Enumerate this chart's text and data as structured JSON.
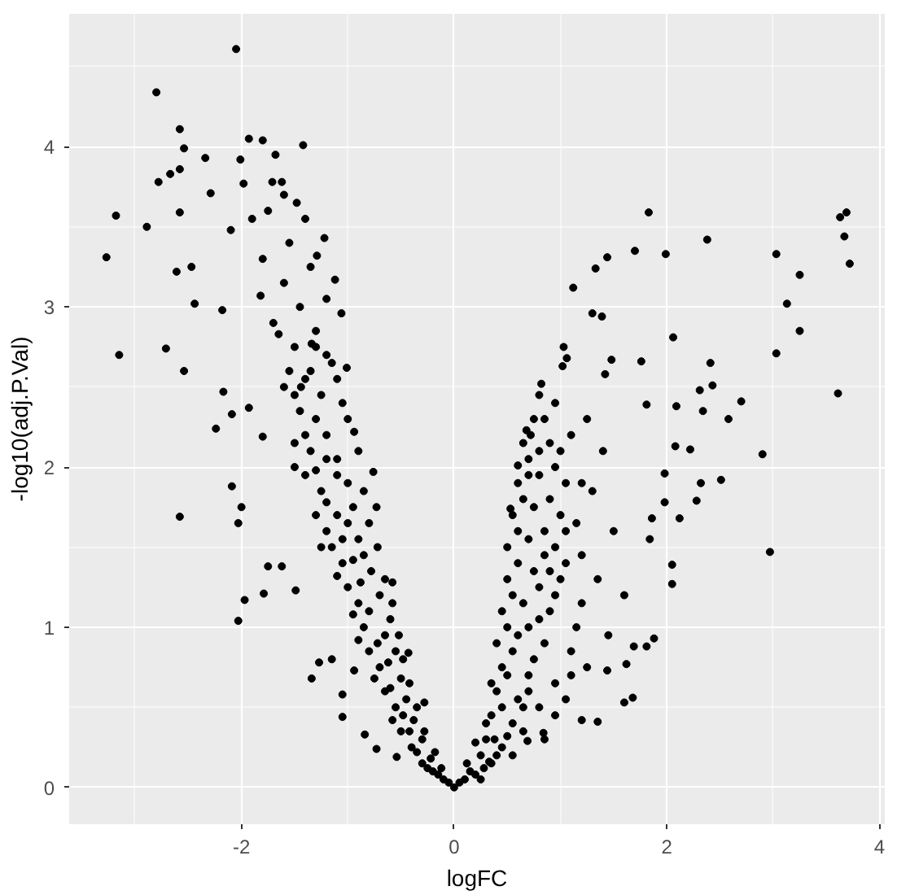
{
  "chart_data": {
    "type": "scatter",
    "xlabel": "logFC",
    "ylabel": "-log10(adj.P.Val)",
    "color": "#000000",
    "marker": "circle",
    "grid": true,
    "xlim": [
      -3.62,
      4.05
    ],
    "ylim": [
      -0.23,
      4.83
    ],
    "xticks": [
      -2,
      0,
      2,
      4
    ],
    "yticks": [
      0,
      1,
      2,
      3,
      4
    ],
    "x": [
      -2.05,
      -2.8,
      -2.58,
      -2.54,
      -1.93,
      -1.8,
      -1.42,
      -2.78,
      -2.67,
      -2.58,
      -3.18,
      -3.27,
      -3.15,
      -2.89,
      -2.58,
      -2.71,
      -2.54,
      -2.61,
      -2.44,
      -2.47,
      -2.34,
      -2.18,
      -2.24,
      -2.09,
      -2.17,
      -2.01,
      -1.68,
      -2.29,
      -1.98,
      -1.71,
      -1.62,
      -1.48,
      -1.22,
      -1.29,
      -1.12,
      -1.06,
      -1.01,
      -0.94,
      -1.93,
      -1.8,
      -2.1,
      -1.82,
      -1.65,
      -1.44,
      -1.34,
      -2.58,
      -2.03,
      -1.97,
      -1.79,
      -2.09,
      -2.03,
      -2.0,
      -1.75,
      -1.62,
      -1.49,
      -1.34,
      -1.05,
      -1.05,
      -1.27,
      -1.15,
      -0.84,
      -0.73,
      -0.54,
      -0.94,
      -0.28,
      -0.43,
      -0.58,
      -0.73,
      -0.76,
      -0.1,
      -0.05,
      -0.2,
      -0.15,
      -0.3,
      -0.22,
      -0.4,
      -0.3,
      -0.5,
      -0.38,
      -0.55,
      -0.45,
      -0.65,
      -0.5,
      -0.7,
      -0.55,
      -0.8,
      -0.65,
      -0.85,
      -0.6,
      -0.9,
      -0.7,
      -1.0,
      -0.78,
      -1.05,
      -0.85,
      -1.15,
      -0.9,
      -1.2,
      -1.0,
      -1.3,
      -0.95,
      -1.25,
      -1.0,
      -1.4,
      -1.1,
      -1.35,
      -1.5,
      -1.2,
      -1.0,
      -1.45,
      -1.25,
      -1.6,
      -1.1,
      -1.35,
      -1.2,
      -1.5,
      -1.3,
      -1.7,
      -1.45,
      -1.2,
      -1.6,
      -1.35,
      -1.8,
      -1.55,
      -1.4,
      -1.75,
      -1.6,
      -1.9,
      -0.12,
      -0.18,
      -0.25,
      -0.28,
      -0.35,
      -0.42,
      -0.35,
      -0.48,
      -0.58,
      -0.42,
      -0.6,
      -0.48,
      -0.62,
      -0.75,
      -0.52,
      -0.72,
      -0.9,
      -0.58,
      -0.8,
      -0.95,
      -0.65,
      -0.88,
      -1.1,
      -0.72,
      -0.95,
      -1.05,
      -1.25,
      -0.8,
      -1.1,
      -1.2,
      -0.85,
      -1.1,
      -1.3,
      -1.5,
      -0.9,
      -1.2,
      -1.4,
      -1.05,
      -1.3,
      -1.5,
      -1.15,
      -1.4,
      -1.3,
      -1.55,
      1.83,
      2.38,
      1.44,
      1.7,
      1.99,
      1.33,
      1.12,
      1.3,
      1.39,
      3.03,
      3.25,
      3.13,
      3.25,
      3.03,
      3.63,
      3.69,
      3.67,
      3.72,
      3.61,
      2.06,
      2.41,
      2.43,
      2.7,
      2.58,
      2.34,
      2.31,
      2.9,
      2.51,
      2.32,
      2.28,
      2.12,
      2.97,
      2.05,
      2.05,
      1.48,
      1.76,
      1.03,
      1.06,
      1.02,
      1.42,
      1.81,
      2.09,
      2.22,
      2.08,
      0.82,
      0.68,
      0.6,
      0.53,
      1.98,
      1.98,
      1.86,
      1.84,
      1.88,
      1.81,
      1.69,
      1.68,
      1.6,
      1.35,
      1.2,
      0.84,
      0.69,
      1.44,
      1.62,
      0.33,
      0.0,
      0.05,
      0.1,
      0.15,
      0.2,
      0.25,
      0.35,
      0.3,
      0.45,
      0.35,
      0.55,
      0.65,
      0.4,
      0.6,
      0.8,
      0.45,
      0.7,
      0.95,
      0.4,
      0.6,
      0.85,
      1.1,
      0.45,
      0.65,
      0.9,
      1.15,
      0.5,
      0.75,
      1.0,
      0.5,
      0.7,
      0.95,
      1.2,
      0.55,
      0.75,
      1.0,
      0.6,
      0.8,
      1.05,
      0.7,
      0.9,
      0.75,
      1.1,
      0.95,
      0.8,
      1.25,
      1.4,
      1.3,
      1.5,
      1.35,
      1.6,
      1.45,
      1.25,
      1.05,
      0.85,
      0.12,
      0.2,
      0.28,
      0.3,
      0.38,
      0.45,
      0.5,
      0.35,
      0.5,
      0.65,
      0.55,
      0.75,
      0.5,
      0.7,
      0.8,
      0.55,
      0.8,
      0.95,
      0.6,
      0.85,
      1.05,
      0.6,
      0.85,
      1.05,
      0.65,
      0.9,
      0.7,
      0.95,
      0.8,
      0.65,
      0.85,
      0.72,
      1.0,
      0.9,
      0.7,
      0.4,
      0.25,
      0.55,
      0.95,
      1.1,
      1.2,
      1.15,
      1.2
    ],
    "values": [
      4.61,
      4.34,
      4.11,
      3.99,
      4.05,
      4.04,
      4.01,
      3.78,
      3.83,
      3.86,
      3.57,
      3.31,
      2.7,
      3.5,
      3.59,
      2.74,
      2.6,
      3.22,
      3.02,
      3.25,
      3.93,
      2.98,
      2.24,
      2.33,
      2.47,
      3.92,
      3.95,
      3.71,
      3.77,
      3.78,
      3.78,
      3.65,
      3.43,
      3.32,
      3.17,
      2.96,
      2.62,
      2.22,
      2.37,
      2.19,
      3.48,
      3.07,
      2.83,
      2.5,
      2.77,
      1.69,
      1.04,
      1.17,
      1.21,
      1.88,
      1.65,
      1.75,
      1.38,
      1.38,
      1.23,
      0.68,
      0.44,
      0.58,
      0.78,
      0.8,
      0.33,
      0.24,
      0.19,
      0.73,
      0.53,
      0.84,
      1.28,
      1.75,
      1.97,
      0.05,
      0.03,
      0.1,
      0.08,
      0.15,
      0.18,
      0.25,
      0.3,
      0.35,
      0.42,
      0.5,
      0.55,
      0.6,
      0.68,
      0.75,
      0.85,
      0.85,
      0.95,
      1.0,
      1.05,
      1.15,
      1.2,
      1.25,
      1.35,
      1.4,
      1.45,
      1.5,
      1.55,
      1.6,
      1.65,
      1.7,
      1.75,
      1.85,
      1.9,
      1.95,
      2.05,
      2.1,
      2.15,
      2.2,
      2.3,
      2.35,
      2.45,
      2.5,
      2.55,
      2.6,
      2.7,
      2.75,
      2.85,
      2.9,
      3.0,
      3.05,
      3.15,
      3.25,
      3.3,
      3.4,
      3.55,
      3.6,
      3.7,
      3.55,
      0.12,
      0.22,
      0.12,
      0.35,
      0.22,
      0.35,
      0.5,
      0.45,
      0.42,
      0.65,
      0.62,
      0.8,
      0.78,
      0.68,
      0.95,
      0.9,
      0.92,
      1.15,
      1.1,
      1.08,
      1.3,
      1.28,
      1.32,
      1.5,
      1.42,
      1.55,
      1.5,
      1.65,
      1.7,
      1.78,
      1.85,
      1.95,
      1.98,
      2.0,
      2.1,
      2.05,
      2.2,
      2.4,
      2.3,
      2.45,
      2.65,
      2.55,
      2.75,
      2.6,
      3.59,
      3.42,
      3.31,
      3.35,
      3.33,
      3.24,
      3.12,
      2.96,
      2.94,
      3.33,
      3.2,
      3.02,
      2.85,
      2.71,
      3.56,
      3.59,
      3.44,
      3.27,
      2.46,
      2.81,
      2.65,
      2.51,
      2.41,
      2.3,
      2.35,
      2.48,
      2.08,
      1.92,
      1.9,
      1.79,
      1.68,
      1.47,
      1.39,
      1.27,
      2.67,
      2.66,
      2.75,
      2.68,
      2.63,
      2.58,
      2.39,
      2.38,
      2.11,
      2.13,
      2.52,
      2.23,
      2.01,
      1.74,
      1.96,
      1.78,
      1.68,
      1.55,
      0.93,
      0.88,
      0.88,
      0.56,
      0.53,
      0.41,
      0.42,
      0.34,
      0.29,
      0.73,
      0.77,
      0.16,
      0.0,
      0.03,
      0.05,
      0.1,
      0.08,
      0.2,
      0.15,
      0.3,
      0.25,
      0.45,
      0.4,
      0.35,
      0.6,
      0.55,
      0.5,
      0.75,
      0.7,
      0.65,
      0.9,
      0.95,
      0.9,
      0.85,
      1.1,
      1.15,
      1.1,
      1.0,
      1.3,
      1.35,
      1.3,
      1.5,
      1.55,
      1.5,
      1.45,
      1.7,
      1.75,
      1.7,
      1.9,
      1.95,
      1.9,
      2.05,
      2.15,
      2.3,
      2.2,
      2.4,
      2.45,
      2.3,
      2.1,
      1.85,
      1.6,
      1.3,
      1.2,
      0.95,
      0.75,
      0.55,
      0.3,
      0.15,
      0.28,
      0.12,
      0.4,
      0.3,
      0.5,
      0.32,
      0.65,
      0.7,
      0.5,
      0.85,
      0.8,
      1.0,
      1.0,
      1.05,
      1.2,
      1.25,
      1.2,
      1.4,
      1.45,
      1.4,
      1.6,
      1.6,
      1.6,
      1.8,
      1.8,
      1.95,
      2.0,
      2.1,
      2.15,
      2.3,
      2.2,
      2.1,
      1.35,
      0.6,
      0.2,
      0.05,
      0.2,
      0.45,
      0.7,
      1.15,
      1.65,
      1.9
    ]
  }
}
